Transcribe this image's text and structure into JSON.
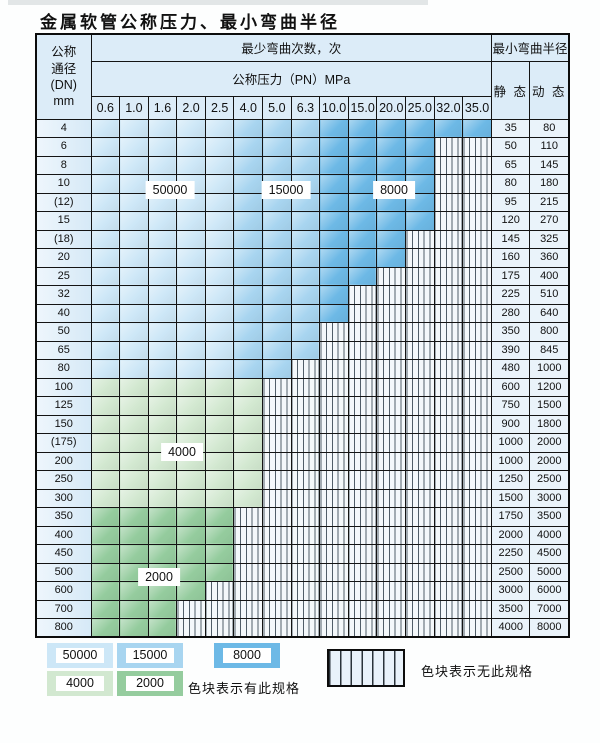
{
  "title": "金属软管公称压力、最小弯曲半径",
  "colors": {
    "c50000": "#cde7f7",
    "c15000": "#a8d5f0",
    "c8000": "#6db9e6",
    "c4000": "#d2e8d0",
    "c2000": "#95cc9e"
  },
  "table": {
    "header": {
      "dn_lines": [
        "公称",
        "通径",
        "(DN)",
        "mm"
      ],
      "bend_cycles": "最少弯曲次数，次",
      "pressure": "公称压力（PN）MPa",
      "min_radius": "最小弯曲半径",
      "static": "静 态",
      "dynamic": "动 态",
      "pressures": [
        "0.6",
        "1.0",
        "1.6",
        "2.0",
        "2.5",
        "4.0",
        "5.0",
        "6.3",
        "10.0",
        "15.0",
        "20.0",
        "25.0",
        "32.0",
        "35.0"
      ]
    },
    "rows": [
      {
        "dn": "4",
        "zones": [
          [
            "c50000",
            5
          ],
          [
            "c15000",
            3
          ],
          [
            "c8000",
            6
          ]
        ],
        "static": "35",
        "dynamic": "80"
      },
      {
        "dn": "6",
        "zones": [
          [
            "c50000",
            5
          ],
          [
            "c15000",
            3
          ],
          [
            "c8000",
            4
          ]
        ],
        "static": "50",
        "dynamic": "110"
      },
      {
        "dn": "8",
        "zones": [
          [
            "c50000",
            5
          ],
          [
            "c15000",
            3
          ],
          [
            "c8000",
            4
          ]
        ],
        "static": "65",
        "dynamic": "145"
      },
      {
        "dn": "10",
        "zones": [
          [
            "c50000",
            5
          ],
          [
            "c15000",
            3
          ],
          [
            "c8000",
            4
          ]
        ],
        "static": "80",
        "dynamic": "180"
      },
      {
        "dn": "(12)",
        "zones": [
          [
            "c50000",
            5
          ],
          [
            "c15000",
            3
          ],
          [
            "c8000",
            4
          ]
        ],
        "static": "95",
        "dynamic": "215"
      },
      {
        "dn": "15",
        "zones": [
          [
            "c50000",
            5
          ],
          [
            "c15000",
            3
          ],
          [
            "c8000",
            4
          ]
        ],
        "static": "120",
        "dynamic": "270"
      },
      {
        "dn": "(18)",
        "zones": [
          [
            "c50000",
            5
          ],
          [
            "c15000",
            3
          ],
          [
            "c8000",
            3
          ]
        ],
        "static": "145",
        "dynamic": "325"
      },
      {
        "dn": "20",
        "zones": [
          [
            "c50000",
            5
          ],
          [
            "c15000",
            3
          ],
          [
            "c8000",
            3
          ]
        ],
        "static": "160",
        "dynamic": "360"
      },
      {
        "dn": "25",
        "zones": [
          [
            "c50000",
            5
          ],
          [
            "c15000",
            3
          ],
          [
            "c8000",
            2
          ]
        ],
        "static": "175",
        "dynamic": "400"
      },
      {
        "dn": "32",
        "zones": [
          [
            "c50000",
            5
          ],
          [
            "c15000",
            3
          ],
          [
            "c8000",
            1
          ]
        ],
        "static": "225",
        "dynamic": "510"
      },
      {
        "dn": "40",
        "zones": [
          [
            "c50000",
            5
          ],
          [
            "c15000",
            3
          ],
          [
            "c8000",
            1
          ]
        ],
        "static": "280",
        "dynamic": "640"
      },
      {
        "dn": "50",
        "zones": [
          [
            "c50000",
            5
          ],
          [
            "c15000",
            3
          ]
        ],
        "static": "350",
        "dynamic": "800"
      },
      {
        "dn": "65",
        "zones": [
          [
            "c50000",
            5
          ],
          [
            "c15000",
            3
          ]
        ],
        "static": "390",
        "dynamic": "845"
      },
      {
        "dn": "80",
        "zones": [
          [
            "c50000",
            5
          ],
          [
            "c15000",
            2
          ]
        ],
        "static": "480",
        "dynamic": "1000"
      },
      {
        "dn": "100",
        "zones": [
          [
            "c4000",
            6
          ]
        ],
        "static": "600",
        "dynamic": "1200"
      },
      {
        "dn": "125",
        "zones": [
          [
            "c4000",
            6
          ]
        ],
        "static": "750",
        "dynamic": "1500"
      },
      {
        "dn": "150",
        "zones": [
          [
            "c4000",
            6
          ]
        ],
        "static": "900",
        "dynamic": "1800"
      },
      {
        "dn": "(175)",
        "zones": [
          [
            "c4000",
            6
          ]
        ],
        "static": "1000",
        "dynamic": "2000"
      },
      {
        "dn": "200",
        "zones": [
          [
            "c4000",
            6
          ]
        ],
        "static": "1000",
        "dynamic": "2000"
      },
      {
        "dn": "250",
        "zones": [
          [
            "c4000",
            6
          ]
        ],
        "static": "1250",
        "dynamic": "2500"
      },
      {
        "dn": "300",
        "zones": [
          [
            "c4000",
            6
          ]
        ],
        "static": "1500",
        "dynamic": "3000"
      },
      {
        "dn": "350",
        "zones": [
          [
            "c2000",
            5
          ]
        ],
        "static": "1750",
        "dynamic": "3500"
      },
      {
        "dn": "400",
        "zones": [
          [
            "c2000",
            5
          ]
        ],
        "static": "2000",
        "dynamic": "4000"
      },
      {
        "dn": "450",
        "zones": [
          [
            "c2000",
            5
          ]
        ],
        "static": "2250",
        "dynamic": "4500"
      },
      {
        "dn": "500",
        "zones": [
          [
            "c2000",
            5
          ]
        ],
        "static": "2500",
        "dynamic": "5000"
      },
      {
        "dn": "600",
        "zones": [
          [
            "c2000",
            4
          ]
        ],
        "static": "3000",
        "dynamic": "6000"
      },
      {
        "dn": "700",
        "zones": [
          [
            "c2000",
            3
          ]
        ],
        "static": "3500",
        "dynamic": "7000"
      },
      {
        "dn": "800",
        "zones": [
          [
            "c2000",
            3
          ]
        ],
        "static": "4000",
        "dynamic": "8000"
      }
    ]
  },
  "overlay_labels": [
    {
      "text": "50000"
    },
    {
      "text": "15000"
    },
    {
      "text": "8000"
    },
    {
      "text": "4000"
    },
    {
      "text": "2000"
    }
  ],
  "legend": {
    "items": [
      {
        "label": "50000",
        "color_key": "c50000"
      },
      {
        "label": "15000",
        "color_key": "c15000"
      },
      {
        "label": "8000",
        "color_key": "c8000"
      },
      {
        "label": "4000",
        "color_key": "c4000"
      },
      {
        "label": "2000",
        "color_key": "c2000"
      }
    ],
    "has_spec_text": "色块表示有此规格",
    "no_spec_text": "色块表示无此规格"
  }
}
